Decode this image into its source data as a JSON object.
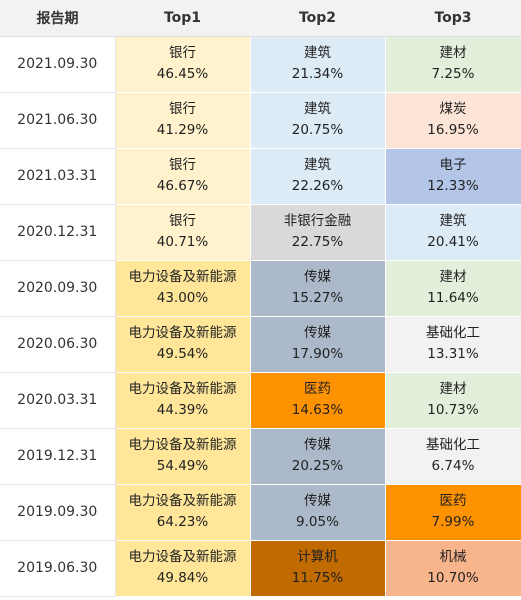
{
  "header": {
    "date_label": "报告期",
    "top1_label": "Top1",
    "top2_label": "Top2",
    "top3_label": "Top3"
  },
  "rows": [
    {
      "date": "2021.09.30",
      "top1": {
        "name": "银行",
        "pct": "46.45%",
        "color": "#fff2cc"
      },
      "top2": {
        "name": "建筑",
        "pct": "21.34%",
        "color": "#ddebf7"
      },
      "top3": {
        "name": "建材",
        "pct": "7.25%",
        "color": "#e2efda"
      }
    },
    {
      "date": "2021.06.30",
      "top1": {
        "name": "银行",
        "pct": "41.29%",
        "color": "#fff2cc"
      },
      "top2": {
        "name": "建筑",
        "pct": "20.75%",
        "color": "#ddebf7"
      },
      "top3": {
        "name": "煤炭",
        "pct": "16.95%",
        "color": "#fce4d6"
      }
    },
    {
      "date": "2021.03.31",
      "top1": {
        "name": "银行",
        "pct": "46.67%",
        "color": "#fff2cc"
      },
      "top2": {
        "name": "建筑",
        "pct": "22.26%",
        "color": "#ddebf7"
      },
      "top3": {
        "name": "电子",
        "pct": "12.33%",
        "color": "#b4c6e7"
      }
    },
    {
      "date": "2020.12.31",
      "top1": {
        "name": "银行",
        "pct": "40.71%",
        "color": "#fff2cc"
      },
      "top2": {
        "name": "非银行金融",
        "pct": "22.75%",
        "color": "#d9d9d9"
      },
      "top3": {
        "name": "建筑",
        "pct": "20.41%",
        "color": "#ddebf7"
      }
    },
    {
      "date": "2020.09.30",
      "top1": {
        "name": "电力设备及新能源",
        "pct": "43.00%",
        "color": "#ffe699"
      },
      "top2": {
        "name": "传媒",
        "pct": "15.27%",
        "color": "#acb9ca"
      },
      "top3": {
        "name": "建材",
        "pct": "11.64%",
        "color": "#e2efda"
      }
    },
    {
      "date": "2020.06.30",
      "top1": {
        "name": "电力设备及新能源",
        "pct": "49.54%",
        "color": "#ffe699"
      },
      "top2": {
        "name": "传媒",
        "pct": "17.90%",
        "color": "#acb9ca"
      },
      "top3": {
        "name": "基础化工",
        "pct": "13.31%",
        "color": "#f2f2f2"
      }
    },
    {
      "date": "2020.03.31",
      "top1": {
        "name": "电力设备及新能源",
        "pct": "44.39%",
        "color": "#ffe699"
      },
      "top2": {
        "name": "医药",
        "pct": "14.63%",
        "color": "#ff9200"
      },
      "top3": {
        "name": "建材",
        "pct": "10.73%",
        "color": "#e2efda"
      }
    },
    {
      "date": "2019.12.31",
      "top1": {
        "name": "电力设备及新能源",
        "pct": "54.49%",
        "color": "#ffe699"
      },
      "top2": {
        "name": "传媒",
        "pct": "20.25%",
        "color": "#acb9ca"
      },
      "top3": {
        "name": "基础化工",
        "pct": "6.74%",
        "color": "#f2f2f2"
      }
    },
    {
      "date": "2019.09.30",
      "top1": {
        "name": "电力设备及新能源",
        "pct": "64.23%",
        "color": "#ffe699"
      },
      "top2": {
        "name": "传媒",
        "pct": "9.05%",
        "color": "#acb9ca"
      },
      "top3": {
        "name": "医药",
        "pct": "7.99%",
        "color": "#ff9200"
      }
    },
    {
      "date": "2019.06.30",
      "top1": {
        "name": "电力设备及新能源",
        "pct": "49.84%",
        "color": "#ffe699"
      },
      "top2": {
        "name": "计算机",
        "pct": "11.75%",
        "color": "#c06a00"
      },
      "top3": {
        "name": "机械",
        "pct": "10.70%",
        "color": "#f8b48a"
      }
    }
  ]
}
